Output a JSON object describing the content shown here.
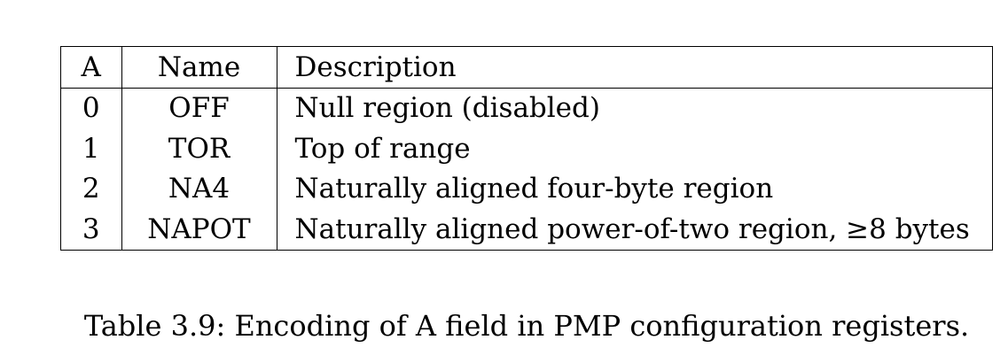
{
  "table": {
    "headers": {
      "a": "A",
      "name": "Name",
      "description": "Description"
    },
    "rows": [
      {
        "a": "0",
        "name": "OFF",
        "description": "Null region (disabled)"
      },
      {
        "a": "1",
        "name": "TOR",
        "description": "Top of range"
      },
      {
        "a": "2",
        "name": "NA4",
        "description": "Naturally aligned four-byte region"
      },
      {
        "a": "3",
        "name": "NAPOT",
        "description": "Naturally aligned power-of-two region, ≥8 bytes"
      }
    ]
  },
  "caption": "Table 3.9: Encoding of A field in PMP configuration registers."
}
